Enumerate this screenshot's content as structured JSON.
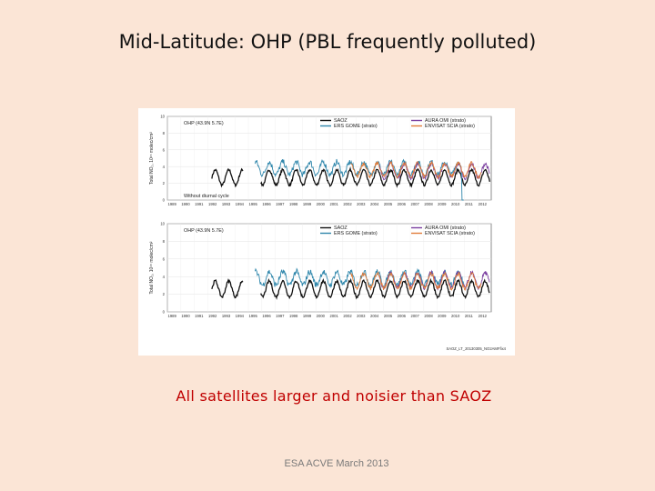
{
  "slide": {
    "title": "Mid-Latitude: OHP (PBL frequently polluted)",
    "caption": "All satellites larger and noisier than SAOZ",
    "footer": "ESA ACVE March 2013",
    "figure_id": "SAOZ_LT_20130305_NO2AMFfix4"
  },
  "colors": {
    "background": "#fbe5d6",
    "caption": "#c00000",
    "SAOZ": "#111111",
    "ERS GOME (strato)": "#2e86ab",
    "AURA OMI (strato)": "#7b3fa0",
    "ENVISAT SCIA (strato)": "#e07b39"
  },
  "chart_data": [
    {
      "type": "line",
      "site_label": "OHP (43.9N 5.7E)",
      "annotation": "Without diurnal cycle",
      "ylabel": "Total NO₂, 10¹⁵ molec/cm²",
      "ylim": [
        0,
        10
      ],
      "yticks": [
        0,
        2,
        4,
        6,
        8,
        10
      ],
      "xlim": [
        1989,
        2013
      ],
      "xticks": [
        "1989",
        "1990",
        "1991",
        "1992",
        "1993",
        "1994",
        "1995",
        "1996",
        "1997",
        "1998",
        "1999",
        "2000",
        "2001",
        "2002",
        "2003",
        "2004",
        "2005",
        "2006",
        "2007",
        "2008",
        "2009",
        "2010",
        "2011",
        "2012"
      ],
      "legend_position": "top",
      "series": [
        {
          "name": "SAOZ",
          "start": 1992.3,
          "end": 2012.9,
          "mean": 2.7,
          "amp": 0.9,
          "noise": 0.15,
          "amp_growth": 0.0
        },
        {
          "name": "ERS GOME (strato)",
          "start": 1995.5,
          "end": 2011.0,
          "mean": 3.8,
          "amp": 0.75,
          "noise": 0.35,
          "amp_growth": 0.0,
          "drop_to_zero_at": 2010.8
        },
        {
          "name": "AURA OMI (strato)",
          "start": 2004.7,
          "end": 2012.9,
          "mean": 3.5,
          "amp": 0.85,
          "noise": 0.25,
          "amp_growth": 0.0
        },
        {
          "name": "ENVISAT SCIA (strato)",
          "start": 2002.6,
          "end": 2012.3,
          "mean": 3.6,
          "amp": 0.8,
          "noise": 0.25,
          "amp_growth": 0.0
        }
      ]
    },
    {
      "type": "line",
      "site_label": "OHP (43.9N 5.7E)",
      "annotation": "",
      "ylabel": "Total NO₂, 10¹⁵ molec/cm²",
      "ylim": [
        0,
        10
      ],
      "yticks": [
        0,
        2,
        4,
        6,
        8,
        10
      ],
      "xlim": [
        1989,
        2013
      ],
      "xticks": [
        "1989",
        "1990",
        "1991",
        "1992",
        "1993",
        "1994",
        "1995",
        "1996",
        "1997",
        "1998",
        "1999",
        "2000",
        "2001",
        "2002",
        "2003",
        "2004",
        "2005",
        "2006",
        "2007",
        "2008",
        "2009",
        "2010",
        "2011",
        "2012"
      ],
      "legend_position": "top",
      "series": [
        {
          "name": "SAOZ",
          "start": 1992.3,
          "end": 2012.9,
          "mean": 2.6,
          "amp": 0.9,
          "noise": 0.15,
          "amp_growth": 0.0
        },
        {
          "name": "ERS GOME (strato)",
          "start": 1995.5,
          "end": 2011.0,
          "mean": 3.8,
          "amp": 0.75,
          "noise": 0.35,
          "amp_growth": 0.0
        },
        {
          "name": "AURA OMI (strato)",
          "start": 2004.7,
          "end": 2012.9,
          "mean": 3.6,
          "amp": 0.85,
          "noise": 0.25,
          "amp_growth": 0.0
        },
        {
          "name": "ENVISAT SCIA (strato)",
          "start": 2002.6,
          "end": 2012.3,
          "mean": 3.5,
          "amp": 0.8,
          "noise": 0.25,
          "amp_growth": 0.0
        }
      ]
    }
  ]
}
